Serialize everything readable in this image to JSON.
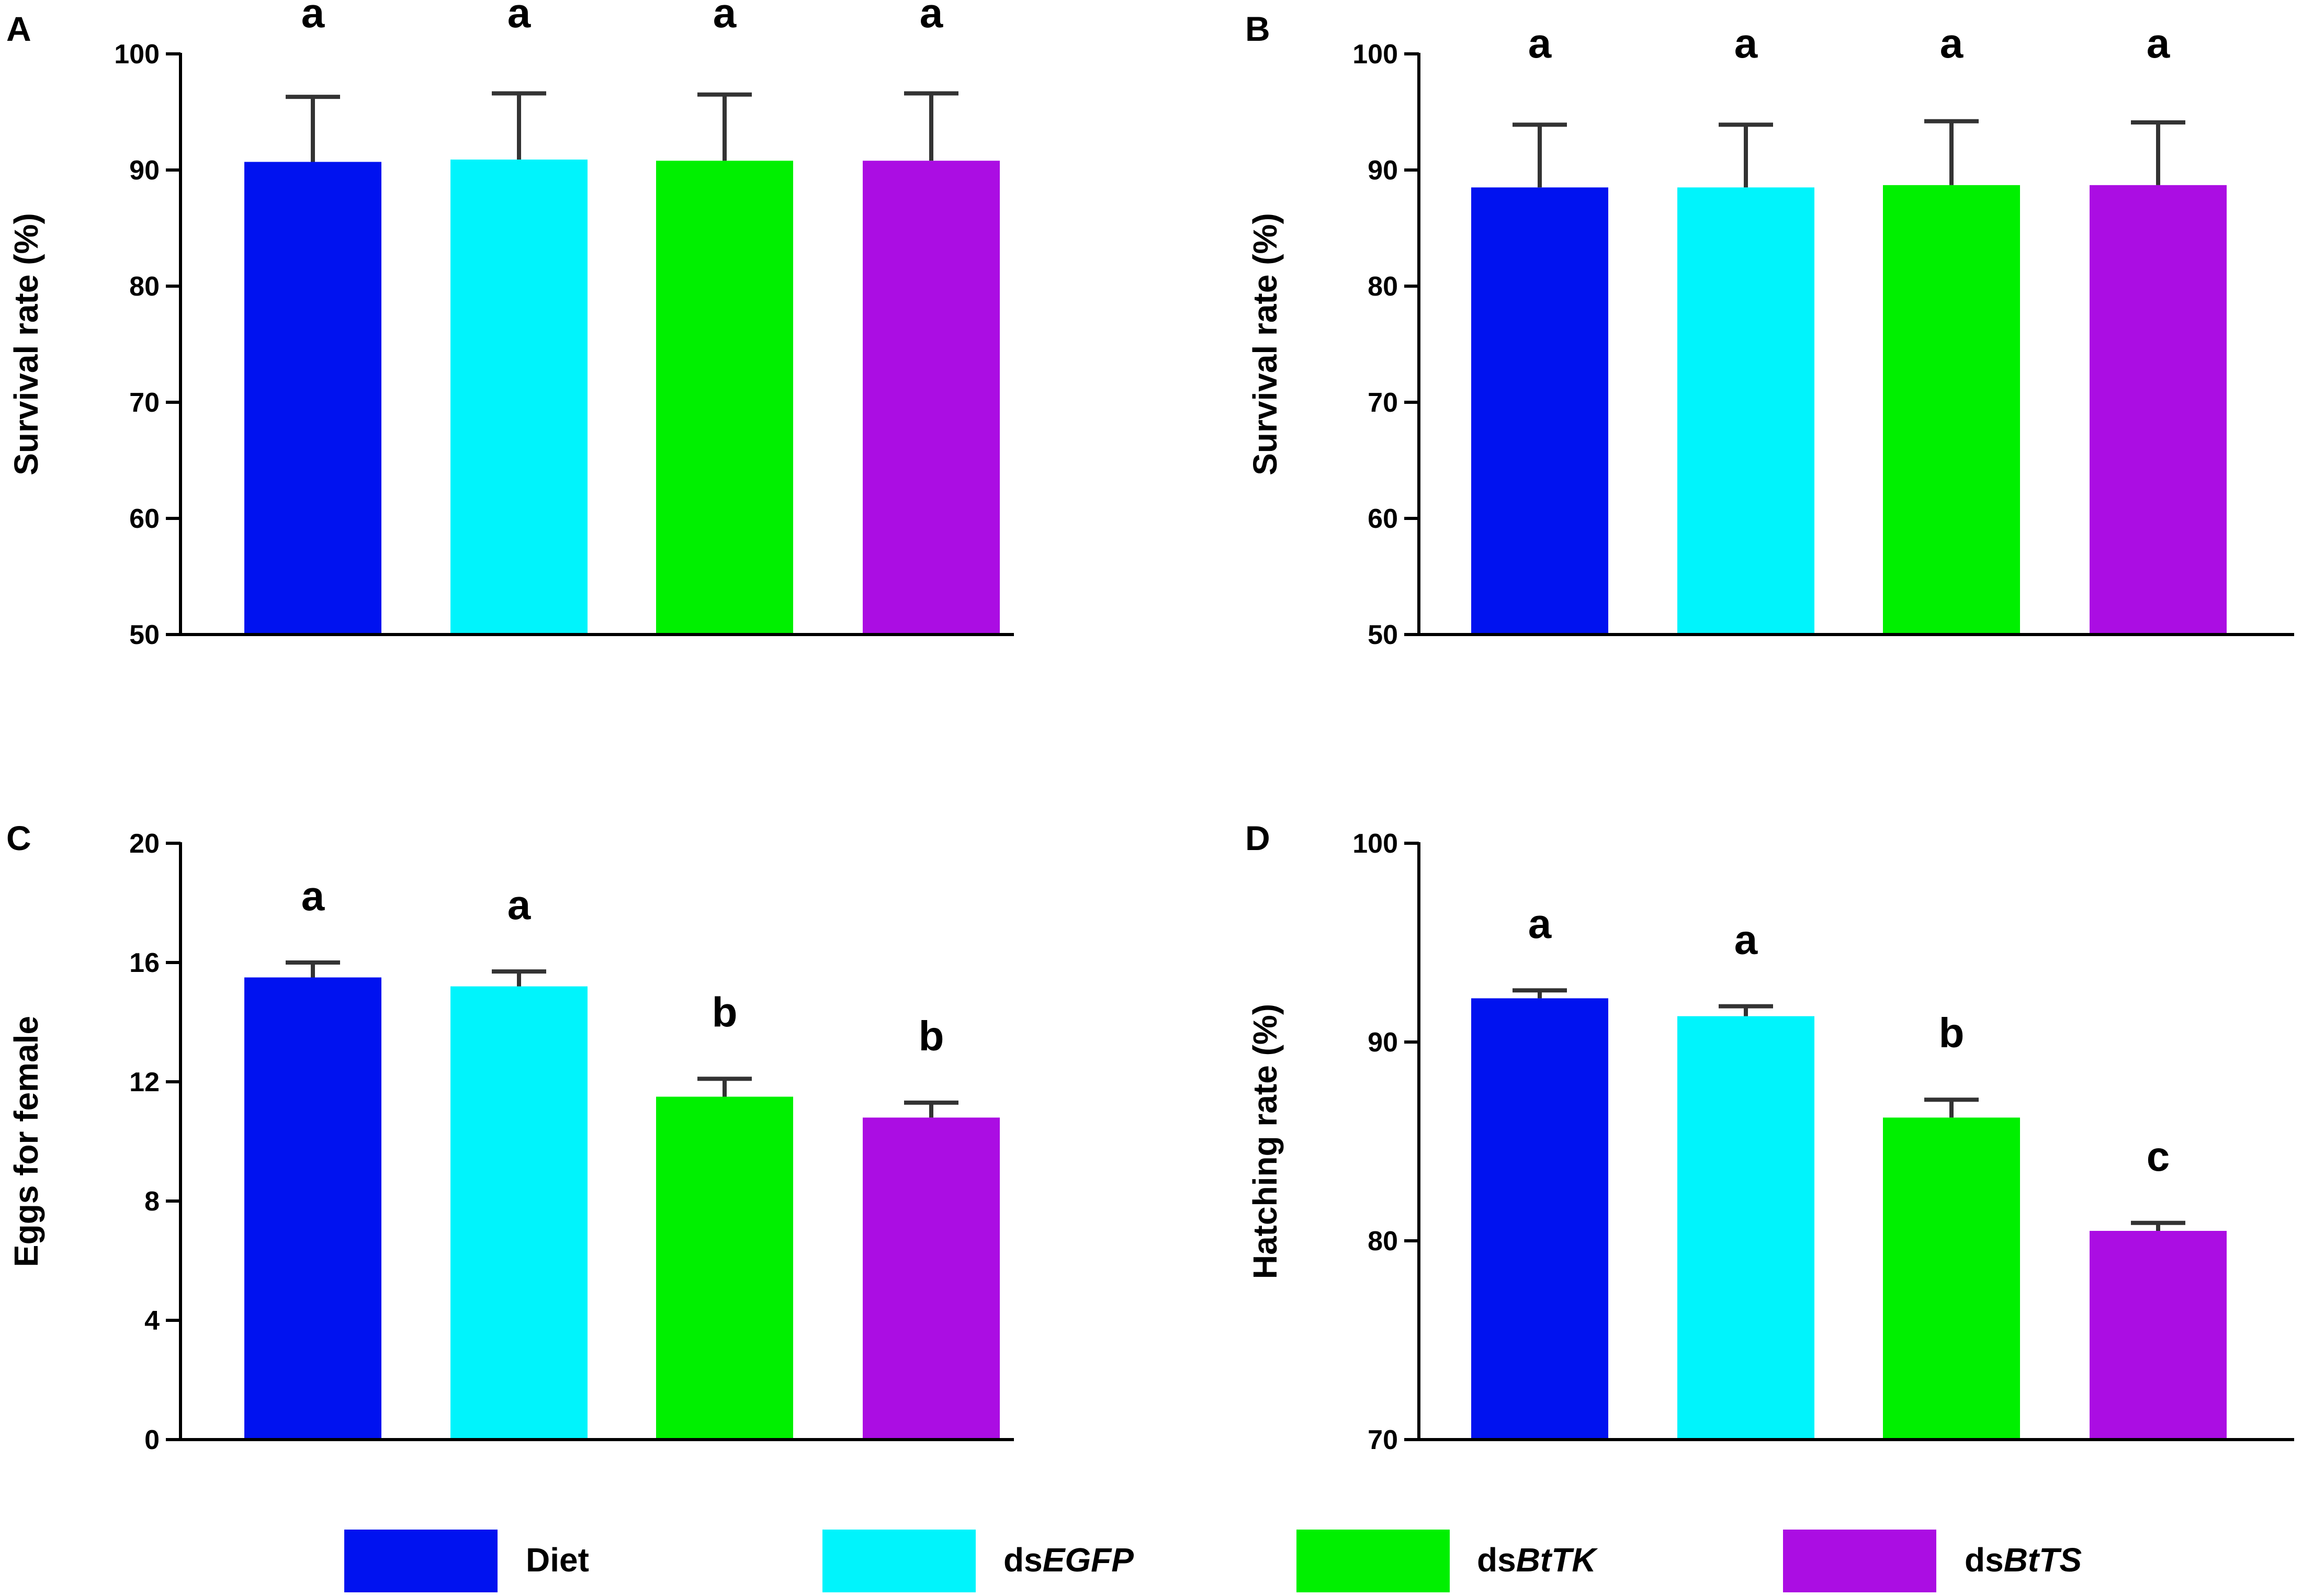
{
  "legend": {
    "items": [
      {
        "prefix": "Diet",
        "italic": "",
        "color": "#0012f0"
      },
      {
        "prefix": "ds",
        "italic": "EGFP",
        "color": "#00f4fc"
      },
      {
        "prefix": "ds",
        "italic": "BtTK",
        "color": "#00f000"
      },
      {
        "prefix": "ds",
        "italic": "BtTS",
        "color": "#ab0de3"
      }
    ]
  },
  "chart_data": [
    {
      "panel": "A",
      "type": "bar",
      "categories": [
        "Diet",
        "dsEGFP",
        "dsBtTK",
        "dsBtTS"
      ],
      "values": [
        90.7,
        90.9,
        90.8,
        90.8
      ],
      "errors": [
        5.6,
        5.7,
        5.7,
        5.8
      ],
      "significance": [
        "a",
        "a",
        "a",
        "a"
      ],
      "colors": [
        "#0012f0",
        "#00f4fc",
        "#00f000",
        "#ab0de3"
      ],
      "ylabel": "Survival rate (%)",
      "ylim": [
        50,
        100
      ],
      "yticks": [
        50,
        60,
        70,
        80,
        90,
        100
      ]
    },
    {
      "panel": "B",
      "type": "bar",
      "categories": [
        "Diet",
        "dsEGFP",
        "dsBtTK",
        "dsBtTS"
      ],
      "values": [
        88.5,
        88.5,
        88.7,
        88.7
      ],
      "errors": [
        5.4,
        5.4,
        5.5,
        5.4
      ],
      "significance": [
        "a",
        "a",
        "a",
        "a"
      ],
      "colors": [
        "#0012f0",
        "#00f4fc",
        "#00f000",
        "#ab0de3"
      ],
      "ylabel": "Survival rate (%)",
      "ylim": [
        50,
        100
      ],
      "yticks": [
        50,
        60,
        70,
        80,
        90,
        100
      ]
    },
    {
      "panel": "C",
      "type": "bar",
      "categories": [
        "Diet",
        "dsEGFP",
        "dsBtTK",
        "dsBtTS"
      ],
      "values": [
        15.5,
        15.2,
        11.5,
        10.8
      ],
      "errors": [
        0.5,
        0.5,
        0.6,
        0.5
      ],
      "significance": [
        "a",
        "a",
        "b",
        "b"
      ],
      "colors": [
        "#0012f0",
        "#00f4fc",
        "#00f000",
        "#ab0de3"
      ],
      "ylabel": "Eggs for female",
      "ylim": [
        0,
        20
      ],
      "yticks": [
        0,
        4,
        8,
        12,
        16,
        20
      ]
    },
    {
      "panel": "D",
      "type": "bar",
      "categories": [
        "Diet",
        "dsEGFP",
        "dsBtTK",
        "dsBtTS"
      ],
      "values": [
        92.2,
        91.3,
        86.2,
        80.5
      ],
      "errors": [
        0.4,
        0.5,
        0.9,
        0.4
      ],
      "significance": [
        "a",
        "a",
        "b",
        "c"
      ],
      "colors": [
        "#0012f0",
        "#00f4fc",
        "#00f000",
        "#ab0de3"
      ],
      "ylabel": "Hatching rate (%)",
      "ylim": [
        70,
        100
      ],
      "yticks": [
        70,
        80,
        90,
        100
      ]
    }
  ]
}
